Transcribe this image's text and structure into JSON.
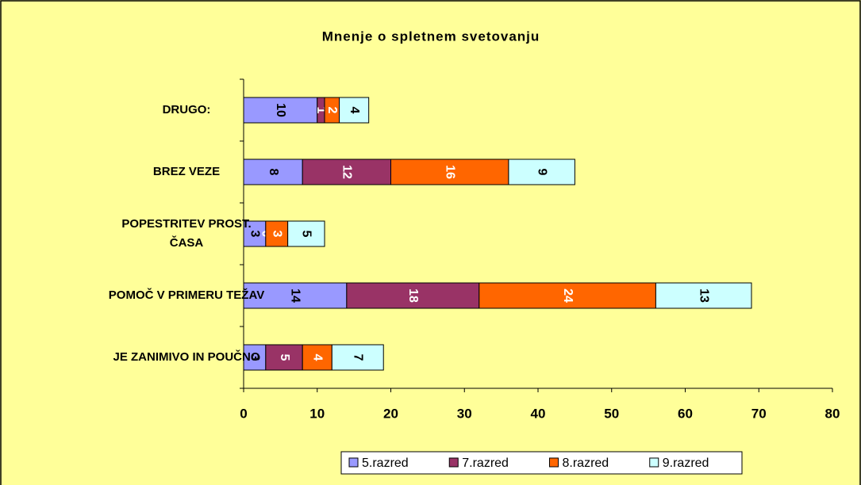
{
  "chart_data": {
    "type": "stacked_bar_horizontal",
    "title": "Mnenje o spletnem svetovanju",
    "categories": [
      "DRUGO:",
      "BREZ VEZE",
      "POPESTRITEV PROST. ČASA",
      "POMOČ V PRIMERU TEŽAV",
      "JE ZANIMIVO IN POUČNO"
    ],
    "series": [
      {
        "name": "5.razred",
        "color": "#9999ff",
        "values": [
          10,
          8,
          3,
          14,
          3
        ]
      },
      {
        "name": "7.razred",
        "color": "#993366",
        "values": [
          1,
          12,
          0,
          18,
          5
        ]
      },
      {
        "name": "8.razred",
        "color": "#ff6600",
        "values": [
          2,
          16,
          3,
          24,
          4
        ]
      },
      {
        "name": "9.razred",
        "color": "#ccffff",
        "values": [
          4,
          9,
          5,
          13,
          7
        ]
      }
    ],
    "xlim": [
      0,
      80
    ],
    "xticks": [
      0,
      10,
      20,
      30,
      40,
      50,
      60,
      70,
      80
    ],
    "grid": false,
    "legend": "bottom"
  }
}
